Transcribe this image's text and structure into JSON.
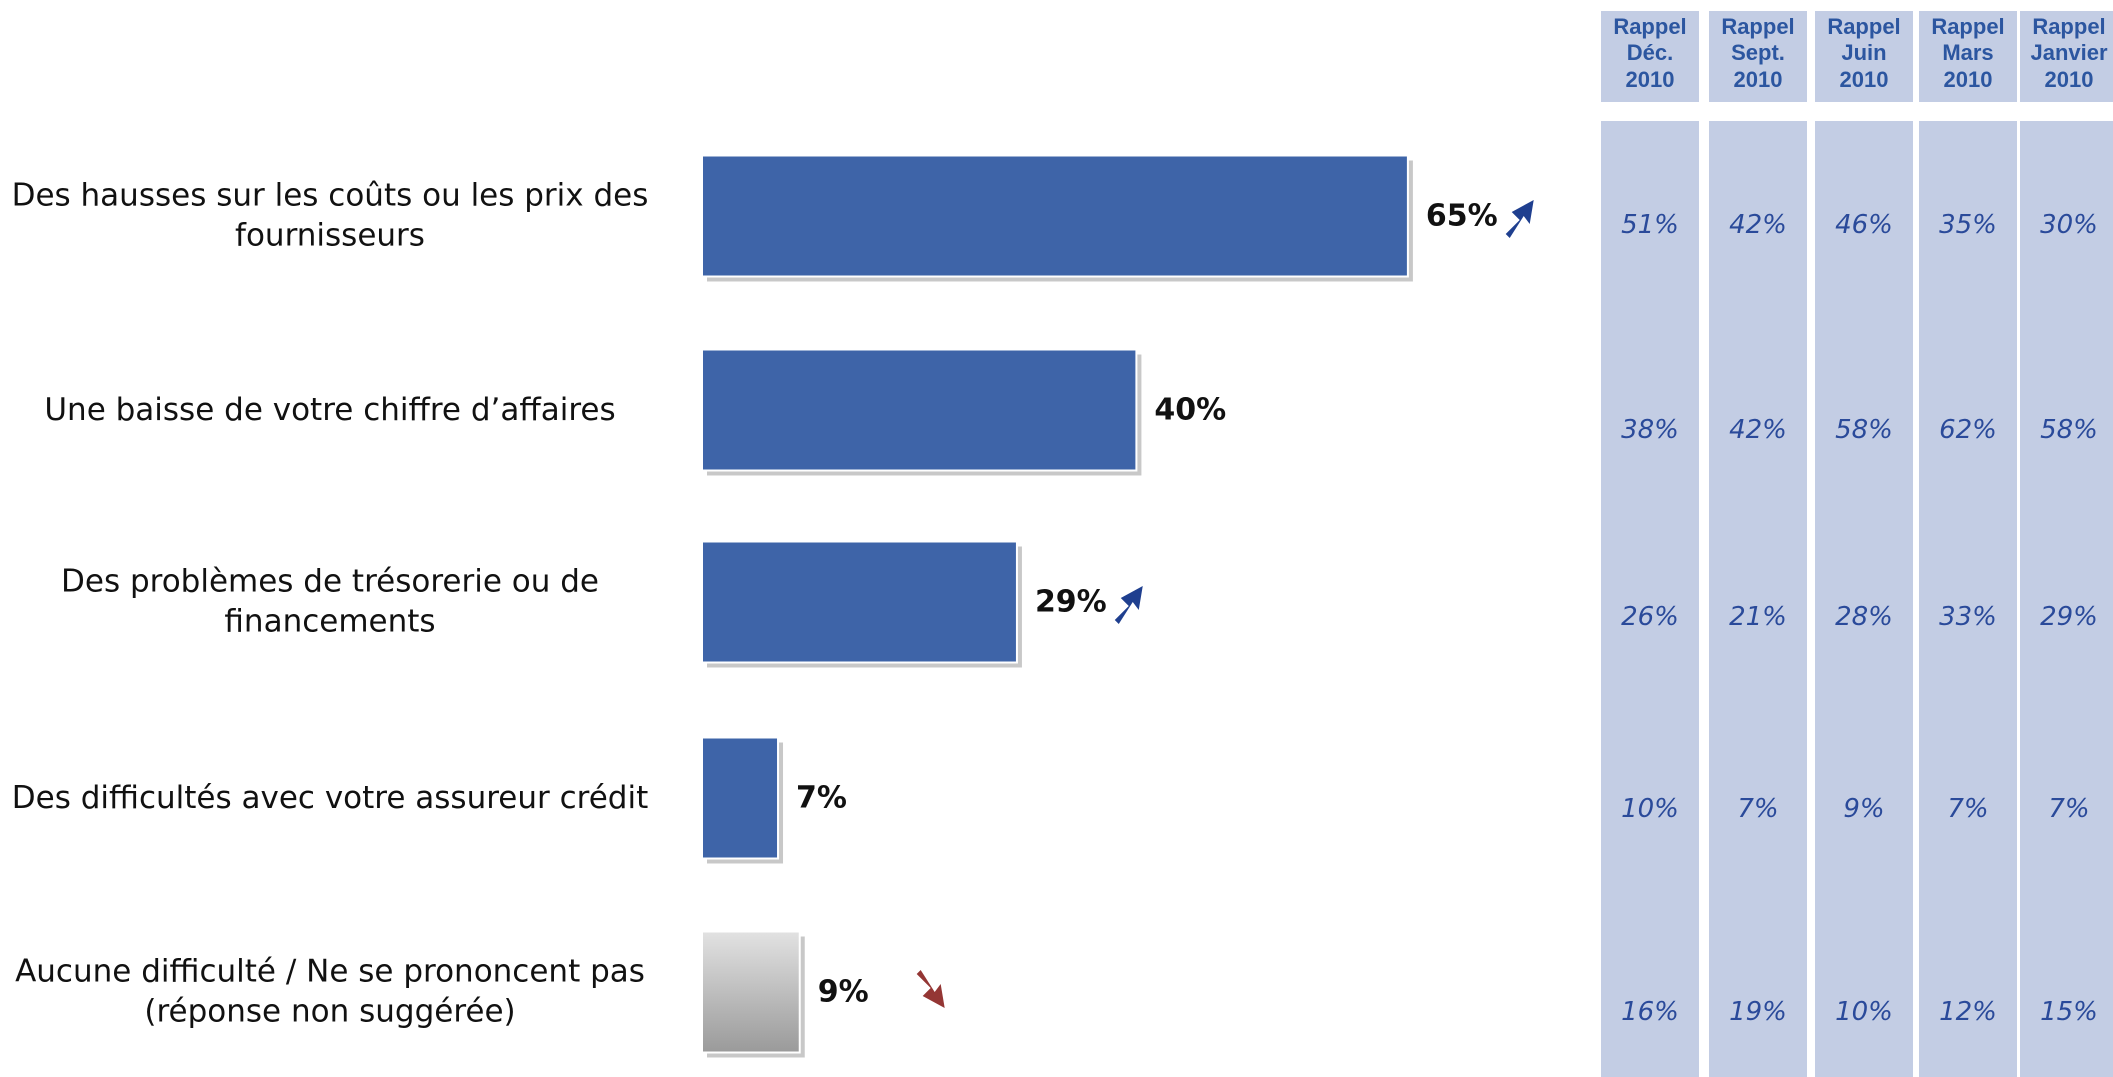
{
  "chart_data": {
    "type": "bar",
    "orientation": "horizontal",
    "categories": [
      "Des hausses sur les coûts ou les prix des fournisseurs",
      "Une baisse de votre chiffre d’affaires",
      "Des problèmes de trésorerie ou de financements",
      "Des difficultés avec votre assureur crédit",
      "Aucune difficulté / Ne se prononcent pas (réponse non suggérée)"
    ],
    "values": [
      65,
      40,
      29,
      7,
      9
    ],
    "value_labels": [
      "65%",
      "40%",
      "29%",
      "7%",
      "9%"
    ],
    "colors": [
      "#3e64a8",
      "#3e64a8",
      "#3e64a8",
      "#3e64a8",
      "#9a9a9a"
    ],
    "trends": [
      "up",
      null,
      "up",
      null,
      "down"
    ],
    "xlim": [
      0,
      100
    ]
  },
  "table": {
    "columns": [
      {
        "header": [
          "Rappel",
          "Déc.",
          "2010"
        ],
        "values": [
          "51%",
          "38%",
          "26%",
          "10%",
          "16%"
        ]
      },
      {
        "header": [
          "Rappel",
          "Sept.",
          "2010"
        ],
        "values": [
          "42%",
          "42%",
          "21%",
          "7%",
          "19%"
        ]
      },
      {
        "header": [
          "Rappel",
          "Juin",
          "2010"
        ],
        "values": [
          "46%",
          "58%",
          "28%",
          "9%",
          "10%"
        ]
      },
      {
        "header": [
          "Rappel",
          "Mars",
          "2010"
        ],
        "values": [
          "35%",
          "62%",
          "33%",
          "7%",
          "12%"
        ]
      },
      {
        "header": [
          "Rappel",
          "Janvier",
          "2010"
        ],
        "values": [
          "30%",
          "58%",
          "29%",
          "7%",
          "15%"
        ]
      }
    ]
  }
}
